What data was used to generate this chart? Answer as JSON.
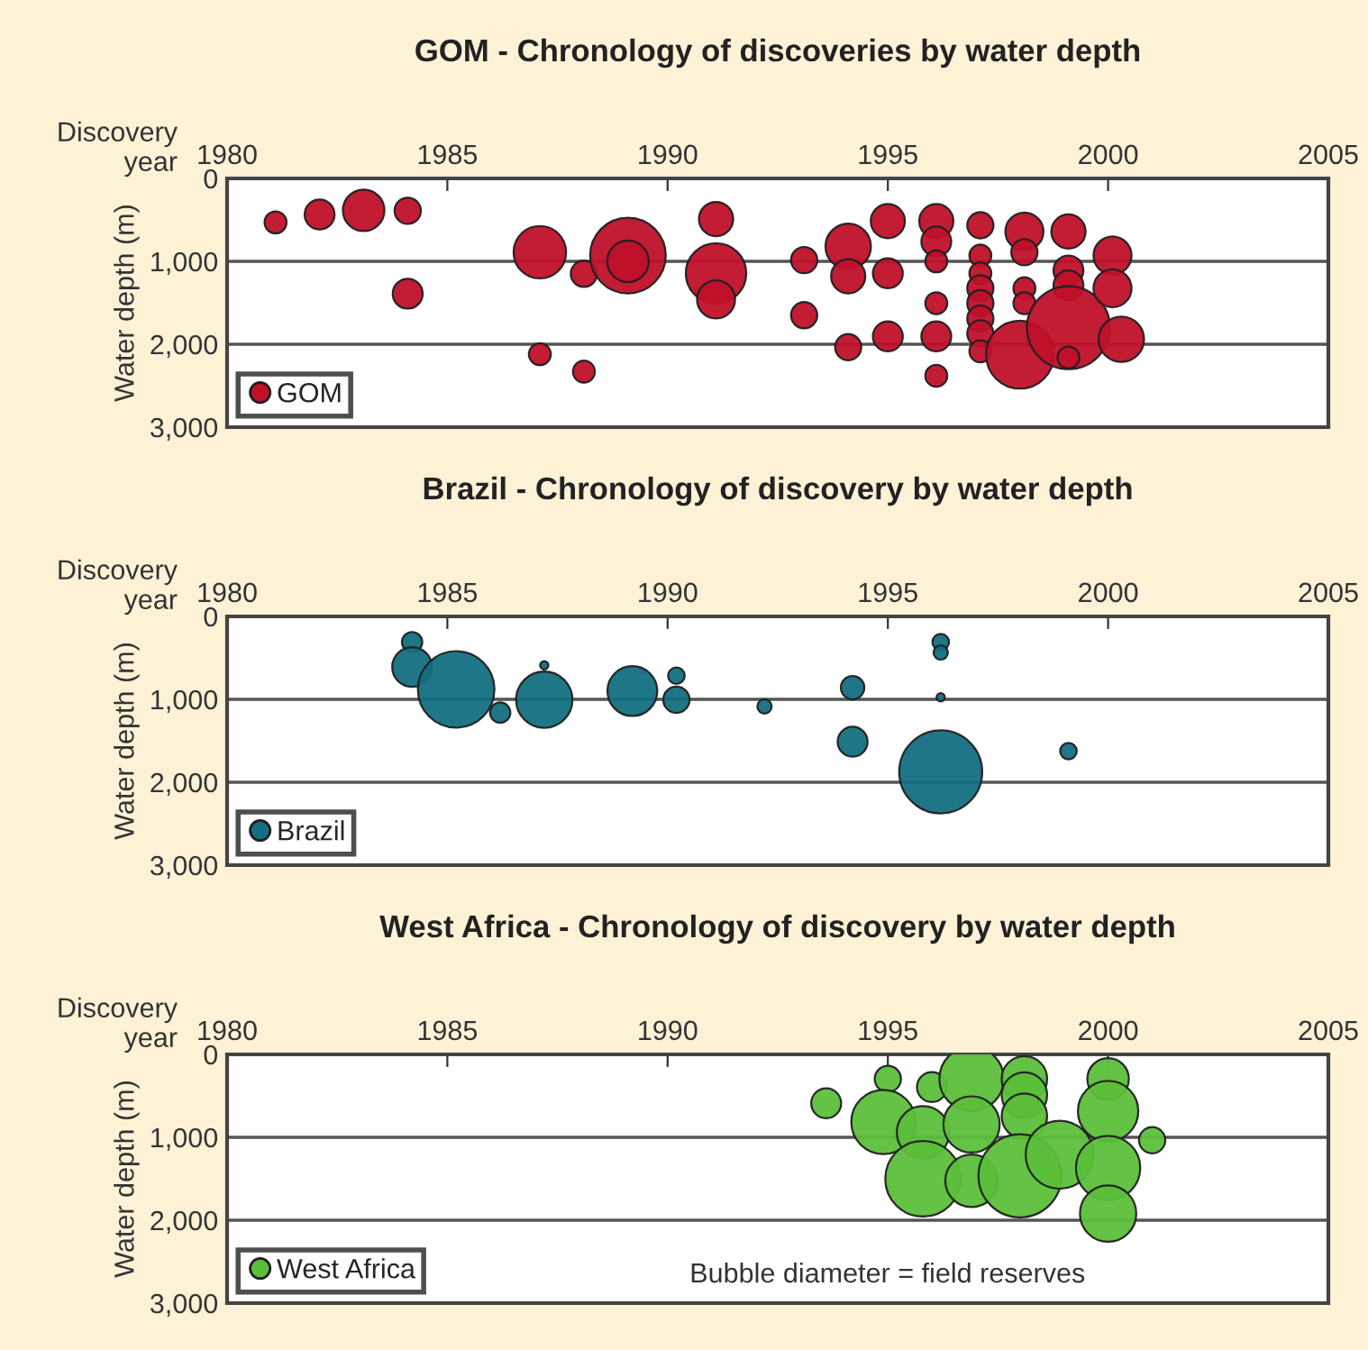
{
  "chart_data": [
    {
      "type": "bubble",
      "title": "GOM - Chronology of discoveries by water depth",
      "xlabel": "Discovery\nyear",
      "ylabel": "Water depth (m)",
      "xlim": [
        1980,
        2005
      ],
      "xticks": [
        1980,
        1985,
        1990,
        1995,
        2000,
        2005
      ],
      "ylim": [
        3000,
        0
      ],
      "yticks": [
        0,
        {
          "value": 1000,
          "label": "1,000"
        },
        {
          "value": 2000,
          "label": "2,000"
        },
        {
          "value": 3000,
          "label": "3,000"
        }
      ],
      "grid": "y",
      "legend": "bottom left",
      "series": [
        {
          "name": "GOM",
          "color": "#c0102a",
          "x": [
            1981.1,
            1982.1,
            1983.1,
            1984.1,
            1984.1,
            1987.1,
            1988.1,
            1989.1,
            1989.1,
            1991.1,
            1991.1,
            1991.1,
            1987.1,
            1988.1,
            1993.1,
            1993.1,
            1994.1,
            1994.1,
            1994.1,
            1995.0,
            1995.0,
            1995.0,
            1996.1,
            1996.1,
            1996.1,
            1996.1,
            1996.1,
            1996.1,
            1997.1,
            1997.1,
            1997.1,
            1997.1,
            1997.1,
            1997.1,
            1997.1,
            1997.1,
            1998.1,
            1998.1,
            1998.1,
            1998.1,
            1998.0,
            1999.1,
            1999.1,
            1999.1,
            1999.1,
            1999.1,
            2000.1,
            2000.1,
            2000.3
          ],
          "values": [
            530,
            435,
            385,
            390,
            1390,
            890,
            1150,
            930,
            1000,
            490,
            1145,
            1460,
            2120,
            2330,
            985,
            1650,
            820,
            1180,
            2035,
            515,
            1145,
            1905,
            515,
            760,
            1000,
            1505,
            1905,
            2380,
            565,
            930,
            1145,
            1325,
            1505,
            1690,
            1870,
            2085,
            640,
            890,
            1325,
            1505,
            2125,
            640,
            1110,
            1290,
            1800,
            2160,
            930,
            1325,
            1940
          ],
          "sizes": [
            0.07,
            0.13,
            0.25,
            0.1,
            0.13,
            0.4,
            0.1,
            0.83,
            0.25,
            0.17,
            0.53,
            0.21,
            0.07,
            0.07,
            0.1,
            0.1,
            0.3,
            0.17,
            0.1,
            0.17,
            0.13,
            0.13,
            0.17,
            0.13,
            0.07,
            0.07,
            0.13,
            0.07,
            0.1,
            0.07,
            0.07,
            0.1,
            0.1,
            0.1,
            0.1,
            0.07,
            0.21,
            0.1,
            0.07,
            0.07,
            0.67,
            0.17,
            0.13,
            0.13,
            1,
            0.07,
            0.21,
            0.21,
            0.3
          ]
        }
      ]
    },
    {
      "type": "bubble",
      "title": "Brazil - Chronology of discovery by water depth",
      "xlabel": "Discovery\nyear",
      "ylabel": "Water depth (m)",
      "xlim": [
        1980,
        2005
      ],
      "xticks": [
        1980,
        1985,
        1990,
        1995,
        2000,
        2005
      ],
      "ylim": [
        3000,
        0
      ],
      "yticks": [
        0,
        {
          "value": 1000,
          "label": "1,000"
        },
        {
          "value": 2000,
          "label": "2,000"
        },
        {
          "value": 3000,
          "label": "3,000"
        }
      ],
      "grid": "y",
      "legend": "bottom left",
      "series": [
        {
          "name": "Brazil",
          "color": "#136f7f",
          "x": [
            1984.2,
            1984.2,
            1985.2,
            1986.2,
            1987.2,
            1987.2,
            1989.2,
            1990.2,
            1990.2,
            1992.2,
            1994.2,
            1994.2,
            1996.2,
            1996.2,
            1996.2,
            1996.2,
            1999.1
          ],
          "values": [
            310,
            610,
            880,
            1160,
            1005,
            590,
            900,
            715,
            1005,
            1085,
            860,
            1510,
            310,
            435,
            975,
            1875,
            1625
          ],
          "sizes": [
            0.06,
            0.23,
            0.85,
            0.06,
            0.46,
            0.01,
            0.36,
            0.04,
            0.1,
            0.03,
            0.08,
            0.13,
            0.04,
            0.03,
            0.01,
            1,
            0.04
          ]
        }
      ]
    },
    {
      "type": "bubble",
      "title": "West Africa - Chronology of discovery by water depth",
      "xlabel": "Discovery\nyear",
      "ylabel": "Water depth (m)",
      "xlim": [
        1980,
        2005
      ],
      "xticks": [
        1980,
        1985,
        1990,
        1995,
        2000,
        2005
      ],
      "ylim": [
        3000,
        0
      ],
      "yticks": [
        0,
        {
          "value": 1000,
          "label": "1,000"
        },
        {
          "value": 2000,
          "label": "2,000"
        },
        {
          "value": 3000,
          "label": "3,000"
        }
      ],
      "grid": "y",
      "legend": "bottom left",
      "annotations": [
        "Bubble diameter = field reserves"
      ],
      "series": [
        {
          "name": "West Africa",
          "color": "#5cbf3a",
          "x": [
            1993.6,
            1995.0,
            1994.9,
            1996.0,
            1995.8,
            1995.8,
            1996.9,
            1996.9,
            1996.9,
            1998.1,
            1998.1,
            1998.1,
            1998.0,
            1998.9,
            2000.0,
            2000.0,
            2000.0,
            2000.0,
            2001.0
          ],
          "values": [
            590,
            295,
            815,
            395,
            940,
            1500,
            295,
            845,
            1525,
            295,
            490,
            745,
            1465,
            1210,
            295,
            685,
            1370,
            1920,
            1035
          ],
          "sizes": [
            0.13,
            0.1,
            0.6,
            0.13,
            0.4,
            0.83,
            0.6,
            0.46,
            0.4,
            0.3,
            0.3,
            0.3,
            1,
            0.67,
            0.25,
            0.53,
            0.6,
            0.46,
            0.1
          ]
        }
      ]
    }
  ]
}
